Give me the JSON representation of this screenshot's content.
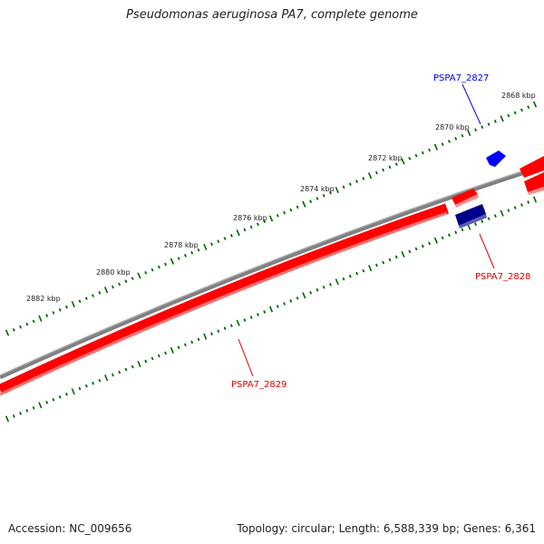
{
  "title": "Pseudomonas aeruginosa PA7, complete genome",
  "footer": {
    "accession": "Accession: NC_009656",
    "topology": "Topology: circular; Length: 6,588,339 bp; Genes: 6,361"
  },
  "scale": {
    "unit": "kbp",
    "labels": [
      "2868 kbp",
      "2870 kbp",
      "2872 kbp",
      "2874 kbp",
      "2876 kbp",
      "2878 kbp",
      "2880 kbp",
      "2882 kbp"
    ]
  },
  "genes": [
    {
      "name": "PSPA7_2827",
      "color": "#0000ee"
    },
    {
      "name": "PSPA7_2828",
      "color": "#dd0000"
    },
    {
      "name": "PSPA7_2829",
      "color": "#dd0000"
    }
  ],
  "colors": {
    "backbone": "#808080",
    "forward_strand": "#ff0000",
    "reverse_strand": "#ff0000",
    "dark_blue_feature": "#000088",
    "blue_feature": "#0000ff",
    "ticks": "#006600"
  }
}
